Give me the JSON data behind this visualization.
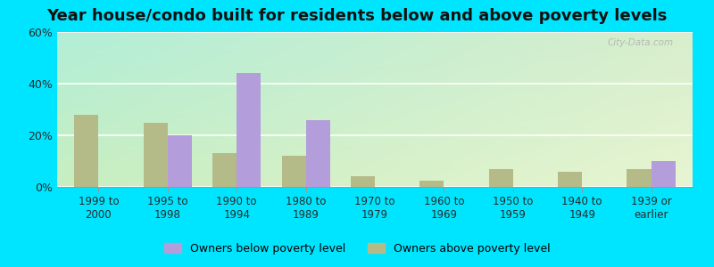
{
  "title": "Year house/condo built for residents below and above poverty levels",
  "categories": [
    "1999 to\n2000",
    "1995 to\n1998",
    "1990 to\n1994",
    "1980 to\n1989",
    "1970 to\n1979",
    "1960 to\n1969",
    "1950 to\n1959",
    "1940 to\n1949",
    "1939 or\nearlier"
  ],
  "below_poverty": [
    0.0,
    20.0,
    44.0,
    26.0,
    0.0,
    0.0,
    0.0,
    0.0,
    10.0
  ],
  "above_poverty": [
    28.0,
    25.0,
    13.0,
    12.0,
    4.0,
    2.5,
    7.0,
    6.0,
    7.0
  ],
  "below_color": "#b39ddb",
  "above_color": "#b5bb88",
  "ylim": [
    0,
    60
  ],
  "yticks": [
    0,
    20,
    40,
    60
  ],
  "ytick_labels": [
    "0%",
    "20%",
    "40%",
    "60%"
  ],
  "bg_tl": "#b2eed8",
  "bg_tr": "#e8f0cc",
  "bg_bl": "#d0f0d0",
  "bg_br": "#f0f5d0",
  "outer_bg": "#00e5ff",
  "legend_below": "Owners below poverty level",
  "legend_above": "Owners above poverty level",
  "bar_width": 0.35,
  "title_fontsize": 13,
  "watermark": "City-Data.com"
}
